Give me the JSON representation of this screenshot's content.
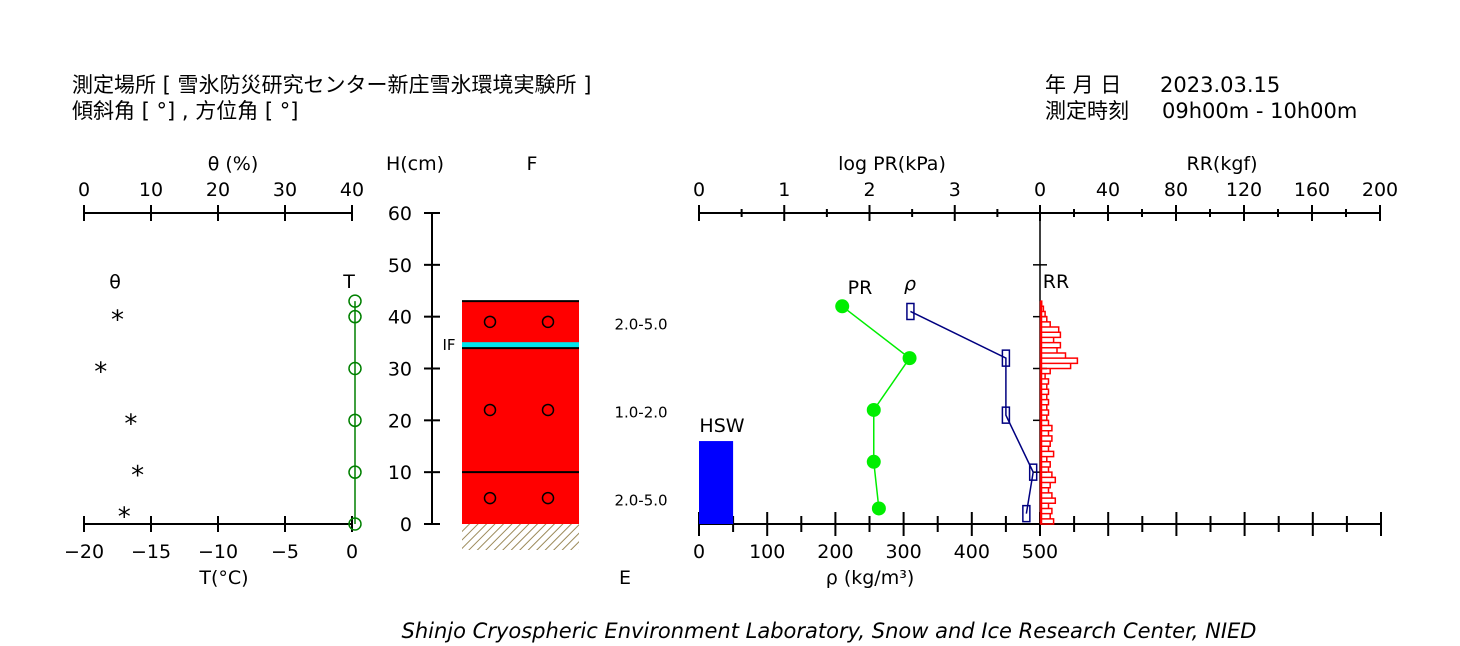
{
  "header": {
    "site_line": "測定場所 [ 雪氷防災研究センター新庄雪氷環境実験所 ]",
    "angle_line": "傾斜角 [ °] , 方位角 [ °]",
    "date_label": "年 月 日",
    "date_value": "2023.03.15",
    "time_label": "測定時刻",
    "time_value": "09h00m - 10h00m"
  },
  "footer": {
    "credit": "Shinjo Cryospheric Environment Laboratory, Snow and Ice Research Center, NIED"
  },
  "colors": {
    "snow": "#ff0000",
    "ice_layer": "#00e5ee",
    "pr": "#00ee00",
    "rho": "#000080",
    "rr": "#ff0000",
    "hsw": "#0000ff",
    "temp": "#008000"
  },
  "chart_data": [
    {
      "type": "scatter",
      "name": "water-content-and-temperature",
      "top_axis": {
        "label": "θ (%)",
        "ticks": [
          "0",
          "10",
          "20",
          "30",
          "40"
        ],
        "range": [
          0,
          40
        ]
      },
      "bottom_axis": {
        "label": "T(°C)",
        "ticks": [
          "−20",
          "−15",
          "−10",
          "−5",
          "0"
        ],
        "range": [
          -20,
          0
        ]
      },
      "series": [
        {
          "name": "θ",
          "marker": "*",
          "points": [
            [
              5,
              40
            ],
            [
              2.5,
              30
            ],
            [
              7,
              20
            ],
            [
              8,
              10
            ],
            [
              6,
              2
            ]
          ]
        },
        {
          "name": "T",
          "marker": "o",
          "points": [
            [
              0.2,
              43
            ],
            [
              0.2,
              40
            ],
            [
              0.2,
              30
            ],
            [
              0.2,
              20
            ],
            [
              0.2,
              10
            ],
            [
              0.2,
              0
            ]
          ]
        }
      ]
    },
    {
      "type": "table",
      "name": "snow-profile",
      "y_axis": {
        "label": "H(cm)",
        "ticks": [
          "0",
          "10",
          "20",
          "30",
          "40",
          "50",
          "60"
        ],
        "range": [
          0,
          60
        ]
      },
      "top_label": "F",
      "bottom_label": "E",
      "total_depth": 43,
      "layers": [
        {
          "from": 0,
          "to": 10
        },
        {
          "from": 10,
          "to": 34
        },
        {
          "from": 35,
          "to": 43
        }
      ],
      "ice_layer": {
        "label": "IF",
        "height": 34.5
      },
      "circles_heights": [
        39,
        22,
        5
      ],
      "grain_sizes": [
        {
          "text": "2.0-5.0",
          "height": 38.5
        },
        {
          "text": "1.0-2.0",
          "height": 21.5
        },
        {
          "text": "2.0-5.0",
          "height": 4.5
        }
      ]
    },
    {
      "type": "line",
      "name": "pr-density-rr",
      "top_axes": [
        {
          "label": "log PR(kPa)",
          "ticks": [
            "0",
            "1",
            "2",
            "3",
            "0"
          ],
          "range": [
            0,
            4
          ]
        },
        {
          "label": "RR(kgf)",
          "ticks": [
            "0",
            "40",
            "80",
            "120",
            "160",
            "200"
          ],
          "range": [
            0,
            200
          ]
        }
      ],
      "bottom_axis": {
        "label": "ρ (kg/m³)",
        "ticks": [
          "0",
          "100",
          "200",
          "300",
          "400",
          "500"
        ],
        "range": [
          0,
          500
        ]
      },
      "hsw": {
        "label": "HSW",
        "height": 16,
        "width": 50
      },
      "series": [
        {
          "name": "PR",
          "x_unit": "log kPa",
          "points": [
            [
              1.68,
              42
            ],
            [
              2.47,
              32
            ],
            [
              2.05,
              22
            ],
            [
              2.05,
              12
            ],
            [
              2.11,
              3
            ]
          ]
        },
        {
          "name": "ρ",
          "x_unit": "kg/m3",
          "points": [
            [
              310,
              41
            ],
            [
              450,
              32
            ],
            [
              450,
              21
            ],
            [
              490,
              10
            ],
            [
              480,
              2
            ]
          ]
        },
        {
          "name": "RR",
          "x_unit": "kgf",
          "steps": [
            [
              0,
              1,
              8
            ],
            [
              1,
              2,
              6
            ],
            [
              2,
              3,
              7
            ],
            [
              3,
              4,
              5
            ],
            [
              4,
              5,
              9
            ],
            [
              5,
              6,
              7
            ],
            [
              6,
              7,
              5
            ],
            [
              7,
              8,
              6
            ],
            [
              8,
              9,
              9
            ],
            [
              9,
              10,
              7
            ],
            [
              10,
              11,
              5
            ],
            [
              11,
              12,
              6
            ],
            [
              12,
              13,
              4
            ],
            [
              13,
              14,
              8
            ],
            [
              14,
              15,
              5
            ],
            [
              15,
              16,
              6
            ],
            [
              16,
              17,
              7
            ],
            [
              17,
              18,
              5
            ],
            [
              18,
              19,
              7
            ],
            [
              19,
              20,
              5
            ],
            [
              20,
              21,
              4
            ],
            [
              21,
              22,
              5
            ],
            [
              22,
              23,
              4
            ],
            [
              23,
              24,
              5
            ],
            [
              24,
              25,
              4
            ],
            [
              25,
              26,
              5
            ],
            [
              26,
              27,
              4
            ],
            [
              27,
              28,
              5
            ],
            [
              28,
              29,
              3
            ],
            [
              29,
              30,
              6
            ],
            [
              30,
              31,
              18
            ],
            [
              31,
              32,
              22
            ],
            [
              32,
              33,
              15
            ],
            [
              33,
              34,
              10
            ],
            [
              34,
              35,
              12
            ],
            [
              35,
              36,
              8
            ],
            [
              36,
              37,
              12
            ],
            [
              37,
              38,
              11
            ],
            [
              38,
              39,
              6
            ],
            [
              39,
              40,
              4
            ],
            [
              40,
              41,
              3
            ],
            [
              41,
              42,
              2
            ],
            [
              42,
              43,
              1
            ]
          ]
        }
      ]
    }
  ]
}
